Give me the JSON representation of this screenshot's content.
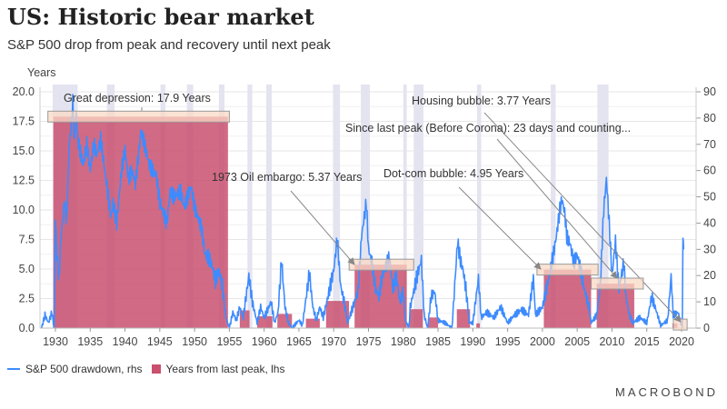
{
  "title": "US: Historic bear market",
  "subtitle": "S&P 500 drop from peak and recovery until next peak",
  "logo": "MACROBOND",
  "legend": {
    "drawdown": "S&P 500 drawdown, rhs",
    "years": "Years from last peak, lhs"
  },
  "colors": {
    "line": "#3d8bff",
    "bar": "#c9506e",
    "recession": "#e4e4f0",
    "annBox": "#fad9c6"
  },
  "chart_data": {
    "type": "bar+line",
    "title": "US: Historic bear market",
    "left_axis": {
      "label": "Years",
      "range": [
        0,
        20
      ],
      "ticks": [
        "0.0",
        "2.5",
        "5.0",
        "7.5",
        "10.0",
        "12.5",
        "15.0",
        "17.5",
        "20.0"
      ]
    },
    "right_axis": {
      "label": "",
      "range": [
        0,
        90
      ],
      "ticks": [
        "0",
        "10",
        "20",
        "30",
        "40",
        "50",
        "60",
        "70",
        "80",
        "90"
      ]
    },
    "x_axis": {
      "range": [
        1927.8,
        2021.5
      ],
      "ticks": [
        "1930",
        "1935",
        "1940",
        "1945",
        "1950",
        "1955",
        "1960",
        "1965",
        "1970",
        "1975",
        "1980",
        "1985",
        "1990",
        "1995",
        "2000",
        "2005",
        "2010",
        "2015",
        "2020"
      ]
    },
    "grid": true,
    "legend_position": "bottom-left",
    "recessions": [
      [
        1929.6,
        1933.2
      ],
      [
        1937.4,
        1938.5
      ],
      [
        1945.1,
        1945.8
      ],
      [
        1948.9,
        1949.8
      ],
      [
        1953.5,
        1954.3
      ],
      [
        1957.6,
        1958.3
      ],
      [
        1960.3,
        1961.1
      ],
      [
        1969.9,
        1970.9
      ],
      [
        1973.9,
        1975.2
      ],
      [
        1980.0,
        1980.5
      ],
      [
        1981.5,
        1982.9
      ],
      [
        1990.6,
        1991.2
      ],
      [
        2001.2,
        2001.9
      ],
      [
        2007.9,
        2009.5
      ]
    ],
    "years_from_peak": [
      {
        "start": 1929.7,
        "end": 1954.8,
        "value": 17.9
      },
      {
        "start": 1956.5,
        "end": 1957.9,
        "value": 1.5
      },
      {
        "start": 1959.0,
        "end": 1961.2,
        "value": 1.0
      },
      {
        "start": 1961.9,
        "end": 1964.0,
        "value": 1.2
      },
      {
        "start": 1966.0,
        "end": 1968.0,
        "value": 0.8
      },
      {
        "start": 1968.9,
        "end": 1972.2,
        "value": 2.3
      },
      {
        "start": 1973.0,
        "end": 1980.5,
        "value": 5.37
      },
      {
        "start": 1980.9,
        "end": 1982.8,
        "value": 1.6
      },
      {
        "start": 1983.6,
        "end": 1985.0,
        "value": 0.9
      },
      {
        "start": 1987.7,
        "end": 1989.6,
        "value": 1.6
      },
      {
        "start": 1990.5,
        "end": 1991.0,
        "value": 0.4
      },
      {
        "start": 2000.2,
        "end": 2007.0,
        "value": 4.95
      },
      {
        "start": 2007.8,
        "end": 2013.2,
        "value": 3.77
      },
      {
        "start": 2018.7,
        "end": 2019.4,
        "value": 0.4
      }
    ],
    "drawdown": [
      [
        1928,
        0
      ],
      [
        1928.5,
        5
      ],
      [
        1929,
        2
      ],
      [
        1929.5,
        6
      ],
      [
        1929.8,
        0
      ],
      [
        1930,
        42
      ],
      [
        1930.2,
        28
      ],
      [
        1930.5,
        18
      ],
      [
        1930.8,
        35
      ],
      [
        1931.3,
        48
      ],
      [
        1931.6,
        40
      ],
      [
        1932,
        70
      ],
      [
        1932.3,
        78
      ],
      [
        1932.5,
        86
      ],
      [
        1932.7,
        70
      ],
      [
        1933,
        82
      ],
      [
        1933.2,
        72
      ],
      [
        1933.5,
        68
      ],
      [
        1934,
        62
      ],
      [
        1934.5,
        70
      ],
      [
        1935,
        60
      ],
      [
        1935.5,
        70
      ],
      [
        1936,
        66
      ],
      [
        1936.5,
        72
      ],
      [
        1937,
        62
      ],
      [
        1937.5,
        52
      ],
      [
        1938,
        42
      ],
      [
        1938.3,
        48
      ],
      [
        1938.8,
        40
      ],
      [
        1939.5,
        60
      ],
      [
        1940,
        68
      ],
      [
        1940.5,
        57
      ],
      [
        1941,
        60
      ],
      [
        1941.5,
        55
      ],
      [
        1942.3,
        75
      ],
      [
        1942.8,
        70
      ],
      [
        1943.5,
        62
      ],
      [
        1944,
        60
      ],
      [
        1944.5,
        58
      ],
      [
        1945,
        48
      ],
      [
        1946,
        40
      ],
      [
        1946.5,
        52
      ],
      [
        1947,
        50
      ],
      [
        1948,
        52
      ],
      [
        1948.5,
        46
      ],
      [
        1949,
        50
      ],
      [
        1949.5,
        54
      ],
      [
        1950,
        46
      ],
      [
        1951,
        38
      ],
      [
        1951.5,
        28
      ],
      [
        1952,
        27
      ],
      [
        1952.5,
        24
      ],
      [
        1953,
        18
      ],
      [
        1953.5,
        22
      ],
      [
        1954,
        16
      ],
      [
        1954.5,
        4
      ],
      [
        1955,
        0
      ],
      [
        1955.5,
        6
      ],
      [
        1956,
        3
      ],
      [
        1956.5,
        8
      ],
      [
        1957,
        4
      ],
      [
        1957.8,
        20
      ],
      [
        1958.3,
        10
      ],
      [
        1959,
        2
      ],
      [
        1959.5,
        8
      ],
      [
        1960,
        4
      ],
      [
        1961,
        10
      ],
      [
        1961.5,
        2
      ],
      [
        1962,
        6
      ],
      [
        1962.5,
        26
      ],
      [
        1963,
        8
      ],
      [
        1963.5,
        2
      ],
      [
        1964,
        0
      ],
      [
        1965,
        3
      ],
      [
        1965.5,
        1
      ],
      [
        1966.5,
        21
      ],
      [
        1967,
        8
      ],
      [
        1967.5,
        3
      ],
      [
        1968,
        8
      ],
      [
        1968.5,
        4
      ],
      [
        1969,
        10
      ],
      [
        1970,
        22
      ],
      [
        1970.5,
        34
      ],
      [
        1971,
        16
      ],
      [
        1971.5,
        10
      ],
      [
        1972,
        2
      ],
      [
        1973,
        10
      ],
      [
        1973.5,
        14
      ],
      [
        1974,
        35
      ],
      [
        1974.7,
        48
      ],
      [
        1975,
        30
      ],
      [
        1975.5,
        25
      ],
      [
        1976,
        15
      ],
      [
        1976.5,
        12
      ],
      [
        1977,
        20
      ],
      [
        1978,
        27
      ],
      [
        1978.5,
        15
      ],
      [
        1979,
        20
      ],
      [
        1979.5,
        10
      ],
      [
        1980,
        14
      ],
      [
        1980.3,
        3
      ],
      [
        1980.8,
        0
      ],
      [
        1981,
        8
      ],
      [
        1982,
        20
      ],
      [
        1982.6,
        26
      ],
      [
        1983,
        5
      ],
      [
        1983.5,
        0
      ],
      [
        1984,
        12
      ],
      [
        1984.5,
        14
      ],
      [
        1985,
        3
      ],
      [
        1986,
        2
      ],
      [
        1987,
        0
      ],
      [
        1987.8,
        33
      ],
      [
        1988.2,
        26
      ],
      [
        1988.6,
        22
      ],
      [
        1989,
        15
      ],
      [
        1989.5,
        2
      ],
      [
        1990,
        2
      ],
      [
        1990.8,
        19
      ],
      [
        1991.2,
        4
      ],
      [
        1992,
        6
      ],
      [
        1993,
        4
      ],
      [
        1994,
        8
      ],
      [
        1995,
        2
      ],
      [
        1996,
        5
      ],
      [
        1997,
        7
      ],
      [
        1998,
        5
      ],
      [
        1998.7,
        19
      ],
      [
        1999,
        5
      ],
      [
        2000,
        8
      ],
      [
        2001,
        20
      ],
      [
        2001.7,
        30
      ],
      [
        2002,
        35
      ],
      [
        2002.5,
        45
      ],
      [
        2002.8,
        49
      ],
      [
        2003.2,
        44
      ],
      [
        2003.5,
        35
      ],
      [
        2004,
        32
      ],
      [
        2004.5,
        25
      ],
      [
        2005,
        28
      ],
      [
        2005.5,
        22
      ],
      [
        2006,
        15
      ],
      [
        2006.7,
        8
      ],
      [
        2007,
        2
      ],
      [
        2007.8,
        5
      ],
      [
        2008.3,
        15
      ],
      [
        2008.8,
        45
      ],
      [
        2009.2,
        57
      ],
      [
        2009.6,
        40
      ],
      [
        2010,
        20
      ],
      [
        2010.5,
        33
      ],
      [
        2011,
        15
      ],
      [
        2011.7,
        25
      ],
      [
        2012,
        12
      ],
      [
        2012.5,
        5
      ],
      [
        2013,
        2
      ],
      [
        2014,
        4
      ],
      [
        2015,
        2
      ],
      [
        2015.7,
        12
      ],
      [
        2016.2,
        8
      ],
      [
        2017,
        1
      ],
      [
        2018,
        3
      ],
      [
        2018.5,
        20
      ],
      [
        2018.8,
        5
      ],
      [
        2019.5,
        6
      ],
      [
        2019.9,
        2
      ],
      [
        2020.1,
        0
      ],
      [
        2020.2,
        32
      ],
      [
        2020.3,
        30
      ]
    ],
    "annotations": [
      {
        "text": "Great depression: 17.9 Years",
        "target": [
          1929.7,
          1955.0,
          17.9
        ]
      },
      {
        "text": "1973 Oil embargo: 5.37 Years",
        "target": [
          1973.0,
          1981.5,
          5.37
        ]
      },
      {
        "text": "Dot-com bubble: 4.95 Years",
        "target": [
          2000.0,
          2008.0,
          4.95
        ]
      },
      {
        "text": "Housing bubble: 3.77 Years",
        "target": [
          2019.6,
          2020.8,
          0.3
        ]
      },
      {
        "text": "Since last peak (Before Corona): 23 days and counting...",
        "target": [
          2007.8,
          2014.5,
          3.77
        ]
      }
    ]
  }
}
